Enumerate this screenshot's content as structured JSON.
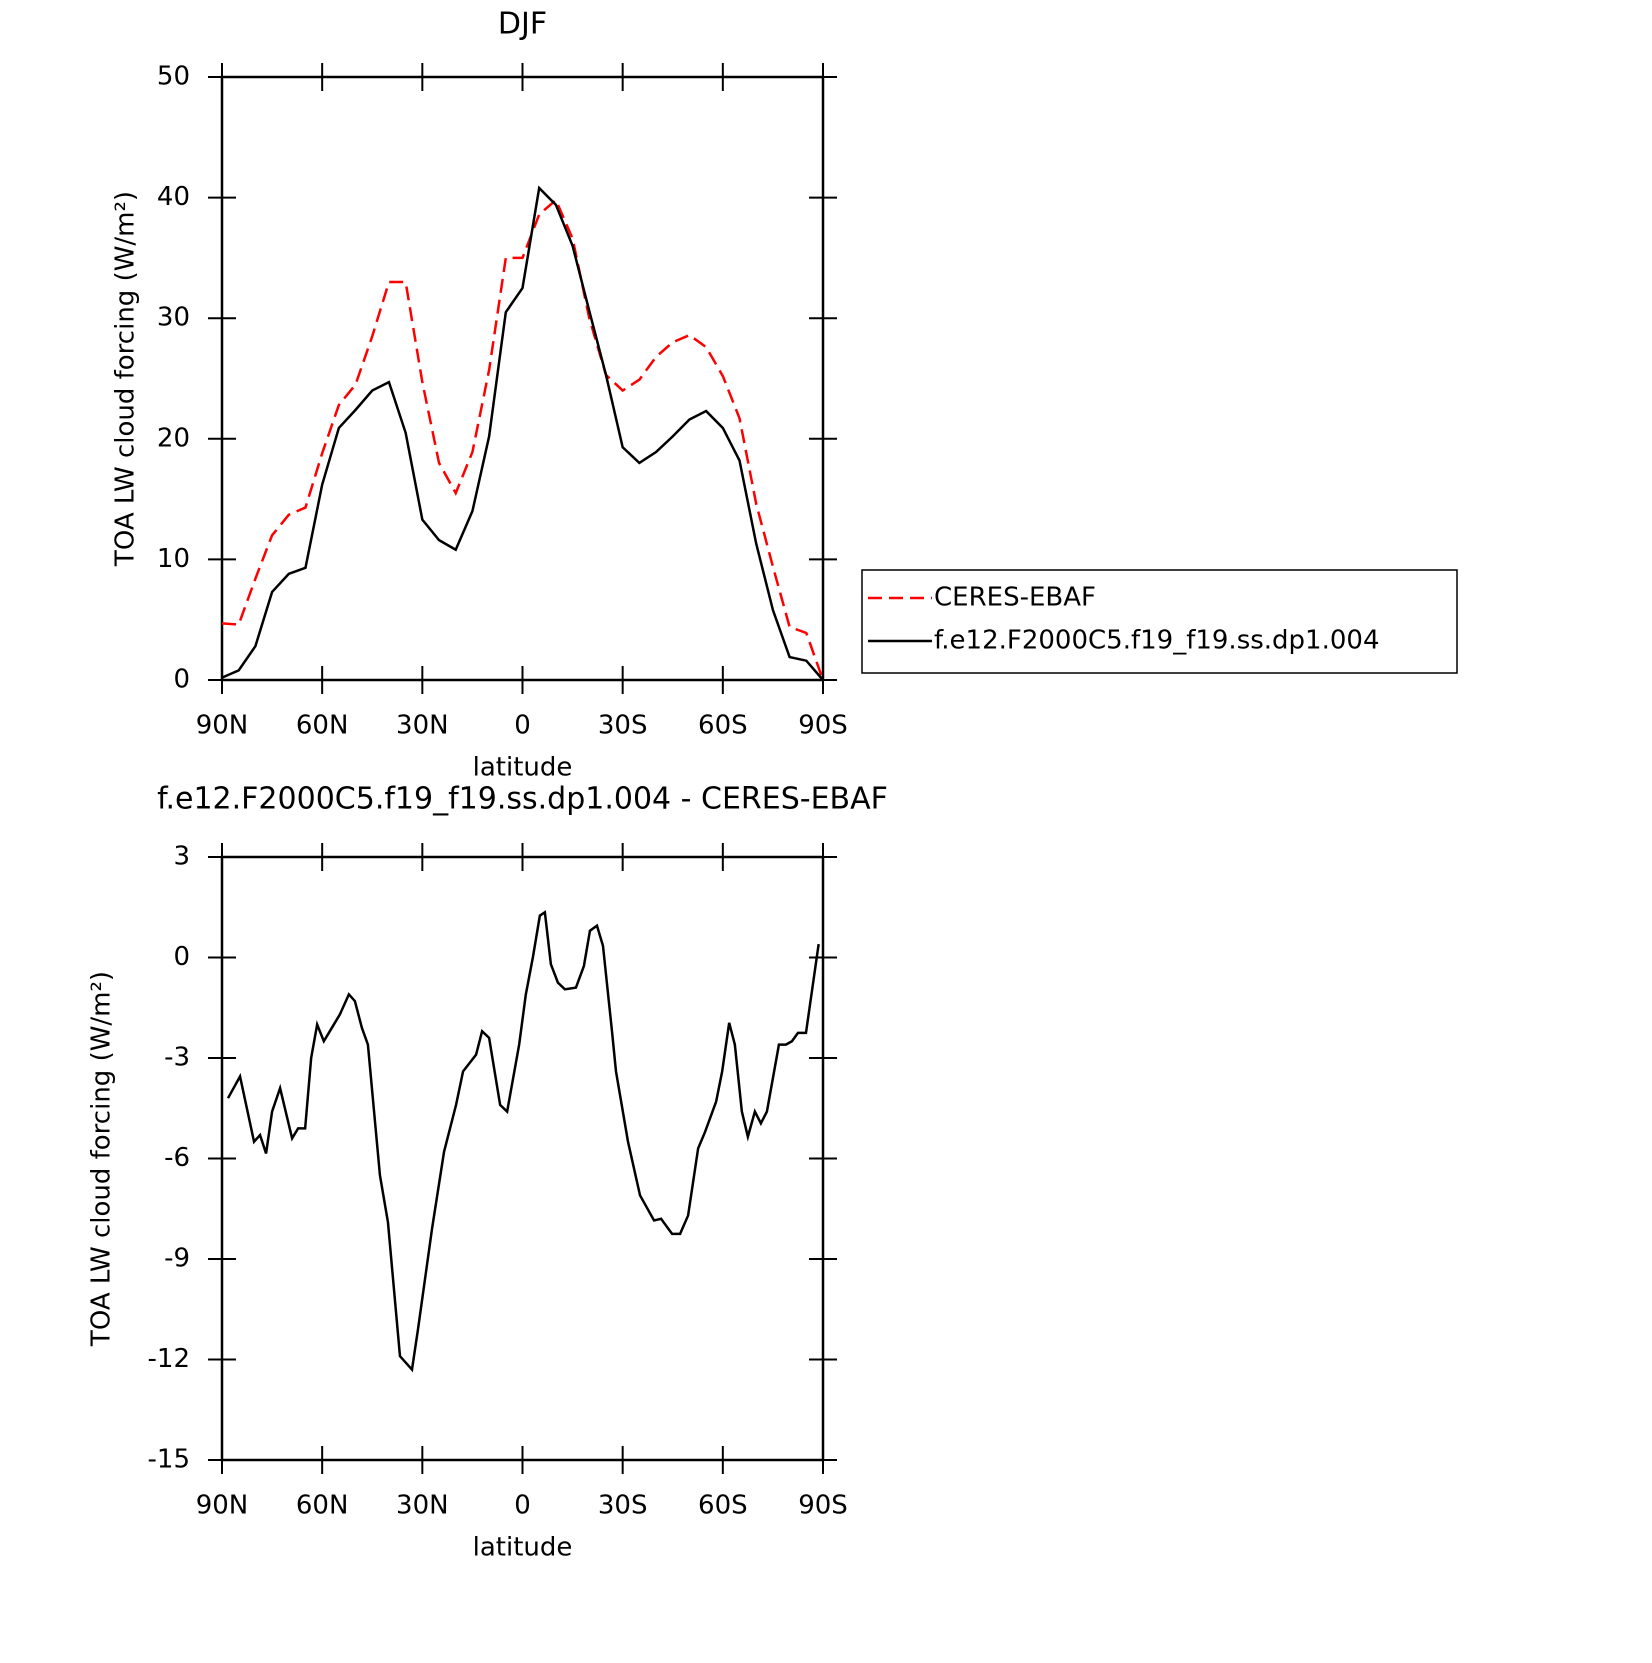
{
  "chart_data": [
    {
      "type": "line",
      "title": "DJF",
      "xlabel": "latitude",
      "ylabel": "TOA LW cloud forcing (W/m²)",
      "xlim": [
        90,
        -90
      ],
      "xticks": [
        {
          "value": 90,
          "label": "90N"
        },
        {
          "value": 60,
          "label": "60N"
        },
        {
          "value": 30,
          "label": "30N"
        },
        0,
        {
          "value": -30,
          "label": "30S"
        },
        {
          "value": -60,
          "label": "60S"
        },
        {
          "value": -90,
          "label": "90S"
        }
      ],
      "ylim": [
        0,
        50
      ],
      "yticks": [
        0,
        10,
        20,
        30,
        40,
        50
      ],
      "legend": "right",
      "x": [
        90,
        85,
        80,
        75,
        70,
        65,
        60,
        55,
        50,
        45,
        40,
        35,
        30,
        25,
        20,
        15,
        10,
        5,
        0,
        -5,
        -10,
        -15,
        -20,
        -25,
        -30,
        -35,
        -40,
        -45,
        -50,
        -55,
        -60,
        -65,
        -70,
        -75,
        -80,
        -85,
        -90
      ],
      "series": [
        {
          "name": "CERES-EBAF",
          "color": "#ff0000",
          "dashed": true,
          "values": [
            4.7,
            4.6,
            8.4,
            12,
            13.7,
            14.3,
            18.8,
            22.8,
            24.5,
            28.5,
            33,
            33,
            24.7,
            18,
            15.5,
            18.9,
            25.7,
            35,
            35,
            38.6,
            39.8,
            36.6,
            30,
            25.3,
            24,
            24.9,
            26.8,
            28,
            28.6,
            27.6,
            25.2,
            21.7,
            14.6,
            9.4,
            4.4,
            3.9,
            0
          ]
        },
        {
          "name": "f.e12.F2000C5.f19_f19.ss.dp1.004",
          "color": "#000000",
          "dashed": false,
          "values": [
            0.2,
            0.8,
            2.8,
            7.3,
            8.8,
            9.3,
            16.2,
            20.9,
            22.4,
            24,
            24.7,
            20.5,
            13.3,
            11.6,
            10.8,
            14,
            20.2,
            30.5,
            32.5,
            40.8,
            39.4,
            36,
            30.6,
            25.3,
            19.3,
            18,
            18.9,
            20.2,
            21.6,
            22.3,
            20.9,
            18.2,
            11.3,
            5.8,
            1.9,
            1.6,
            0
          ]
        }
      ]
    },
    {
      "type": "line",
      "title": "f.e12.F2000C5.f19_f19.ss.dp1.004 - CERES-EBAF",
      "xlabel": "latitude",
      "ylabel": "TOA LW cloud forcing (W/m²)",
      "xlim": [
        90,
        -90
      ],
      "xticks": [
        {
          "value": 90,
          "label": "90N"
        },
        {
          "value": 60,
          "label": "60N"
        },
        {
          "value": 30,
          "label": "30N"
        },
        0,
        {
          "value": -30,
          "label": "30S"
        },
        {
          "value": -60,
          "label": "60S"
        },
        {
          "value": -90,
          "label": "90S"
        }
      ],
      "ylim": [
        -15,
        3
      ],
      "yticks": [
        3,
        0,
        -3,
        -6,
        -9,
        -12,
        -15
      ],
      "color": "#000000",
      "x": [
        88.2,
        84.6,
        80.4,
        78.6,
        76.8,
        75,
        72.6,
        69,
        67.2,
        65.1,
        63.3,
        61.5,
        59.5,
        57.7,
        54.7,
        52,
        50.2,
        48.1,
        46.3,
        42.7,
        40.3,
        36.7,
        33.1,
        31.3,
        27.1,
        23.5,
        19.9,
        17.8,
        13.9,
        12.1,
        10,
        6.7,
        4.6,
        1,
        -1,
        -3.1,
        -5.2,
        -6.7,
        -8.5,
        -10.6,
        -12.7,
        -16,
        -18.4,
        -20.2,
        -22.3,
        -24.1,
        -26.8,
        -28,
        -31.6,
        -35.2,
        -39.4,
        -41.5,
        -44.8,
        -47.2,
        -49.6,
        -52.6,
        -54.7,
        -58,
        -59.8,
        -61.9,
        -63.6,
        -65.7,
        -67.5,
        -69.6,
        -71.4,
        -73.2,
        -76.8,
        -78.9,
        -80.7,
        -82.5,
        -84.9,
        -88.7
      ],
      "values": [
        -4.2,
        -3.55,
        -5.5,
        -5.3,
        -5.85,
        -4.6,
        -3.9,
        -5.4,
        -5.1,
        -5.1,
        -3,
        -2,
        -2.5,
        -2.2,
        -1.7,
        -1.1,
        -1.3,
        -2.1,
        -2.6,
        -6.5,
        -7.9,
        -11.9,
        -12.3,
        -11.1,
        -8.1,
        -5.8,
        -4.4,
        -3.4,
        -2.9,
        -2.2,
        -2.4,
        -4.4,
        -4.6,
        -2.6,
        -1.1,
        0,
        1.25,
        1.35,
        -0.2,
        -0.75,
        -0.95,
        -0.9,
        -0.25,
        0.8,
        0.95,
        0.35,
        -2.2,
        -3.4,
        -5.5,
        -7.1,
        -7.85,
        -7.8,
        -8.25,
        -8.25,
        -7.7,
        -5.7,
        -5.2,
        -4.3,
        -3.4,
        -1.95,
        -2.6,
        -4.6,
        -5.35,
        -4.6,
        -4.95,
        -4.6,
        -2.6,
        -2.6,
        -2.5,
        -2.25,
        -2.25,
        0.4
      ]
    }
  ]
}
